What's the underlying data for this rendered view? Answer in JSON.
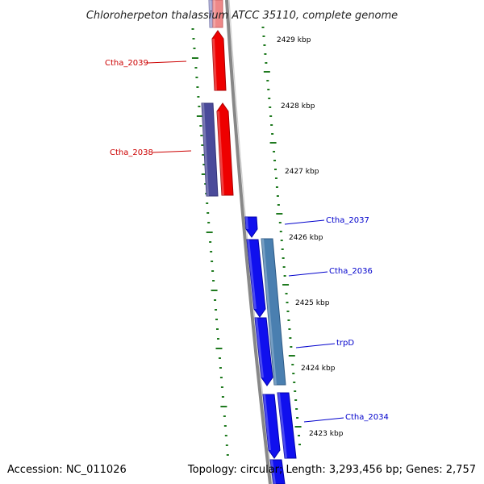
{
  "title": "Chloroherpeton thalassium ATCC 35110, complete genome",
  "footer": {
    "accession": "Accession: NC_011026",
    "summary": "Topology: circular; Length: 3,293,456 bp; Genes: 2,757"
  },
  "colors": {
    "forward_gene": "#ee0000",
    "forward_gene_dark": "#aa0000",
    "forward_gene_faded": "#ee8888",
    "forward_cds_alt": "#4a4a9a",
    "forward_cds_alt_faded": "#9a9acc",
    "reverse_gene": "#1010ee",
    "reverse_gene_dark": "#0000aa",
    "reverse_cds_alt": "#4a7fb0",
    "backbone": "#888888",
    "gc_skew_ticks": "#1f7a1f",
    "forward_label": "#cc0000",
    "reverse_label": "#0000cc"
  },
  "kbp_labels": [
    "2429 kbp",
    "2428 kbp",
    "2427 kbp",
    "2426 kbp",
    "2425 kbp",
    "2424 kbp",
    "2423 kbp"
  ],
  "gene_labels": [
    {
      "text": "Ctha_2039",
      "strand": "forward"
    },
    {
      "text": "Ctha_2038",
      "strand": "forward"
    },
    {
      "text": "Ctha_2037",
      "strand": "reverse"
    },
    {
      "text": "Ctha_2036",
      "strand": "reverse"
    },
    {
      "text": "trpD",
      "strand": "reverse"
    },
    {
      "text": "Ctha_2034",
      "strand": "reverse"
    }
  ]
}
